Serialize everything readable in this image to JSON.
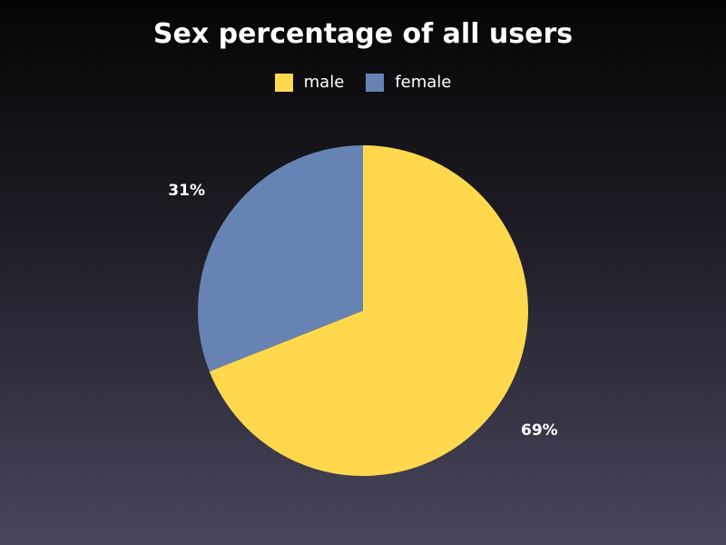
{
  "chart_data": {
    "type": "pie",
    "title": "Sex percentage of all users",
    "legend_position": "top-center",
    "slices": [
      {
        "name": "male",
        "value": 69,
        "label": "69%",
        "color": "#ffd84d"
      },
      {
        "name": "female",
        "value": 31,
        "label": "31%",
        "color": "#6683b3"
      }
    ]
  }
}
